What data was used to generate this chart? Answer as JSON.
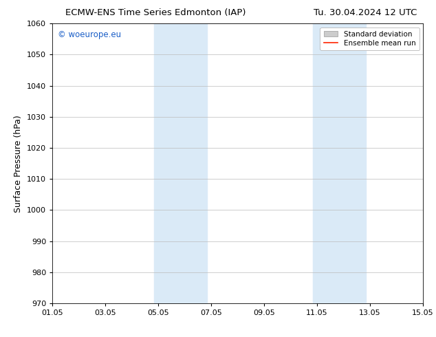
{
  "title_left": "ECMW-ENS Time Series Edmonton (IAP)",
  "title_right": "Tu. 30.04.2024 12 UTC",
  "ylabel": "Surface Pressure (hPa)",
  "ylim": [
    970,
    1060
  ],
  "yticks": [
    970,
    980,
    990,
    1000,
    1010,
    1020,
    1030,
    1040,
    1050,
    1060
  ],
  "xtick_labels": [
    "01.05",
    "03.05",
    "05.05",
    "07.05",
    "09.05",
    "11.05",
    "13.05",
    "15.05"
  ],
  "xtick_positions": [
    0,
    2,
    4,
    6,
    8,
    10,
    12,
    14
  ],
  "xlim": [
    0,
    14
  ],
  "shaded_regions": [
    {
      "x_start": 3.85,
      "x_end": 5.85,
      "color": "#daeaf7"
    },
    {
      "x_start": 9.85,
      "x_end": 11.85,
      "color": "#daeaf7"
    }
  ],
  "background_color": "#ffffff",
  "plot_bg_color": "#ffffff",
  "watermark_text": "© woeurope.eu",
  "watermark_color": "#1a5ec7",
  "legend_items": [
    {
      "label": "Standard deviation",
      "color": "#cccccc",
      "type": "rect"
    },
    {
      "label": "Ensemble mean run",
      "color": "#ff2200",
      "type": "line"
    }
  ],
  "title_fontsize": 9.5,
  "tick_fontsize": 8,
  "ylabel_fontsize": 9,
  "watermark_fontsize": 8.5,
  "legend_fontsize": 7.5,
  "grid_color": "#bbbbbb",
  "spine_color": "#000000"
}
